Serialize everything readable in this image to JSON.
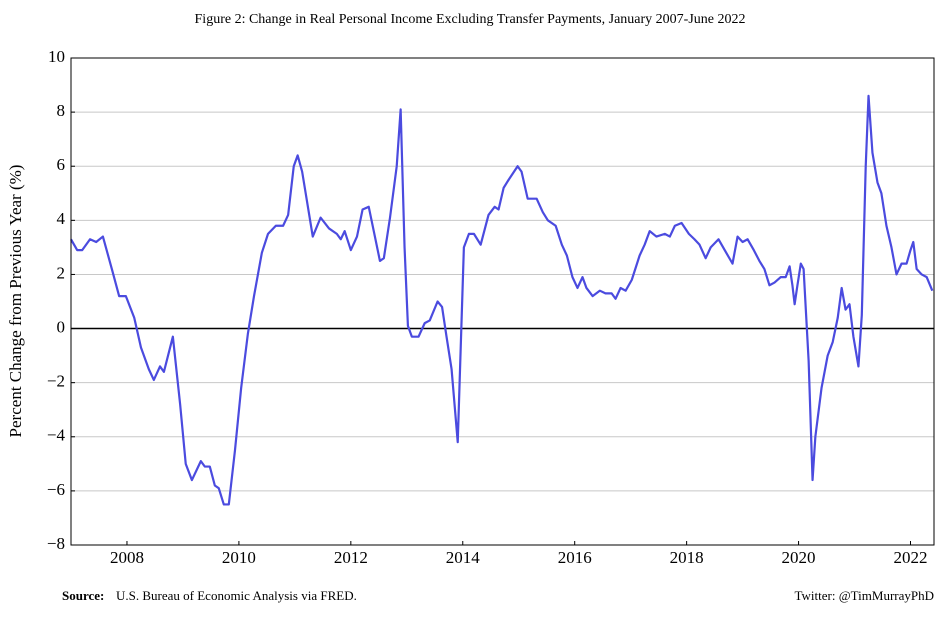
{
  "chart_data": {
    "type": "line",
    "title": "Figure 2: Change in Real Personal Income Excluding Transfer Payments, January 2007-June 2022",
    "y_label": "Percent Change from Previous Year (%)",
    "color": "#4b4bdf",
    "x": [
      2007.0,
      2007.11,
      2007.2,
      2007.34,
      2007.45,
      2007.57,
      2007.73,
      2007.86,
      2007.98,
      2008.13,
      2008.25,
      2008.39,
      2008.48,
      2008.59,
      2008.66,
      2008.82,
      2008.95,
      2009.05,
      2009.16,
      2009.32,
      2009.39,
      2009.48,
      2009.57,
      2009.64,
      2009.73,
      2009.82,
      2009.93,
      2010.04,
      2010.16,
      2010.27,
      2010.41,
      2010.52,
      2010.66,
      2010.79,
      2010.88,
      2010.98,
      2011.05,
      2011.13,
      2011.32,
      2011.46,
      2011.61,
      2011.75,
      2011.82,
      2011.89,
      2012.0,
      2012.11,
      2012.21,
      2012.32,
      2012.43,
      2012.52,
      2012.59,
      2012.7,
      2012.82,
      2012.89,
      2012.96,
      2013.02,
      2013.09,
      2013.21,
      2013.32,
      2013.41,
      2013.55,
      2013.63,
      2013.71,
      2013.8,
      2013.91,
      2014.02,
      2014.11,
      2014.2,
      2014.32,
      2014.46,
      2014.57,
      2014.64,
      2014.73,
      2014.82,
      2014.98,
      2015.05,
      2015.16,
      2015.32,
      2015.43,
      2015.52,
      2015.66,
      2015.77,
      2015.86,
      2015.96,
      2016.05,
      2016.14,
      2016.21,
      2016.32,
      2016.45,
      2016.55,
      2016.66,
      2016.73,
      2016.82,
      2016.91,
      2017.02,
      2017.16,
      2017.25,
      2017.34,
      2017.46,
      2017.61,
      2017.7,
      2017.79,
      2017.91,
      2018.04,
      2018.14,
      2018.23,
      2018.34,
      2018.43,
      2018.57,
      2018.68,
      2018.82,
      2018.91,
      2019.0,
      2019.09,
      2019.2,
      2019.3,
      2019.39,
      2019.48,
      2019.57,
      2019.68,
      2019.77,
      2019.84,
      2019.89,
      2019.93,
      2019.98,
      2020.04,
      2020.09,
      2020.18,
      2020.25,
      2020.3,
      2020.41,
      2020.52,
      2020.61,
      2020.7,
      2020.77,
      2020.84,
      2020.91,
      2020.98,
      2021.07,
      2021.13,
      2021.2,
      2021.25,
      2021.32,
      2021.41,
      2021.48,
      2021.57,
      2021.66,
      2021.75,
      2021.84,
      2021.93,
      2022.0,
      2022.05,
      2022.11,
      2022.2,
      2022.29,
      2022.39
    ],
    "values": [
      3.3,
      2.9,
      2.9,
      3.3,
      3.2,
      3.4,
      2.2,
      1.2,
      1.2,
      0.4,
      -0.7,
      -1.5,
      -1.9,
      -1.4,
      -1.6,
      -0.3,
      -2.8,
      -5.0,
      -5.6,
      -4.9,
      -5.1,
      -5.1,
      -5.8,
      -5.9,
      -6.5,
      -6.5,
      -4.5,
      -2.2,
      -0.2,
      1.2,
      2.8,
      3.5,
      3.8,
      3.8,
      4.2,
      6.0,
      6.4,
      5.8,
      3.4,
      4.1,
      3.7,
      3.5,
      3.3,
      3.6,
      2.9,
      3.4,
      4.4,
      4.5,
      3.4,
      2.5,
      2.6,
      4.1,
      6.0,
      8.1,
      3.0,
      0.1,
      -0.3,
      -0.3,
      0.2,
      0.3,
      1.0,
      0.8,
      -0.3,
      -1.5,
      -4.2,
      3.0,
      3.5,
      3.5,
      3.1,
      4.2,
      4.5,
      4.4,
      5.2,
      5.5,
      6.0,
      5.8,
      4.8,
      4.8,
      4.3,
      4.0,
      3.8,
      3.1,
      2.7,
      1.9,
      1.5,
      1.9,
      1.5,
      1.2,
      1.4,
      1.3,
      1.3,
      1.1,
      1.5,
      1.4,
      1.8,
      2.7,
      3.1,
      3.6,
      3.4,
      3.5,
      3.4,
      3.8,
      3.9,
      3.5,
      3.3,
      3.1,
      2.6,
      3.0,
      3.3,
      2.9,
      2.4,
      3.4,
      3.2,
      3.3,
      2.9,
      2.5,
      2.2,
      1.6,
      1.7,
      1.9,
      1.9,
      2.3,
      1.6,
      0.9,
      1.6,
      2.4,
      2.2,
      -1.2,
      -5.6,
      -4.0,
      -2.2,
      -1.0,
      -0.5,
      0.4,
      1.5,
      0.7,
      0.9,
      -0.3,
      -1.4,
      0.5,
      6.0,
      8.6,
      6.5,
      5.4,
      5.0,
      3.8,
      3.0,
      2.0,
      2.4,
      2.4,
      2.9,
      3.2,
      2.2,
      2.0,
      1.9,
      1.4
    ],
    "xlim": [
      2007,
      2022.42
    ],
    "xticks": [
      2008,
      2010,
      2012,
      2014,
      2016,
      2018,
      2020,
      2022
    ],
    "ylim": [
      -8,
      10
    ],
    "yticks": [
      {
        "value": -8,
        "label": "−8"
      },
      {
        "value": -6,
        "label": "−6"
      },
      {
        "value": -4,
        "label": "−4"
      },
      {
        "value": -2,
        "label": "−2"
      },
      0,
      2,
      4,
      6,
      8,
      10
    ],
    "grid": true,
    "zero_line": true,
    "source_label": "Source:",
    "source": "U.S. Bureau of Economic Analysis via FRED.",
    "credit": "Twitter: @TimMurrayPhD"
  }
}
